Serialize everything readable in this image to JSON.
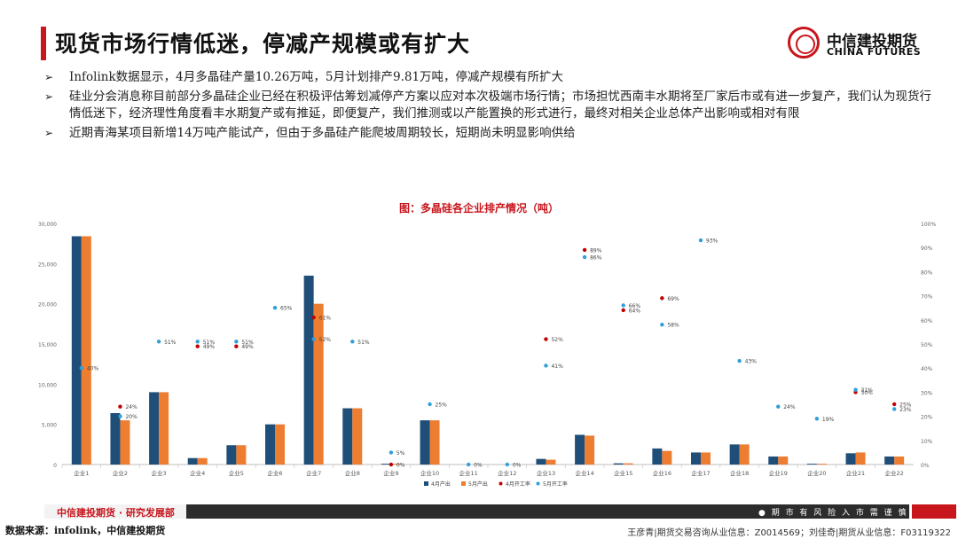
{
  "header": {
    "title": "现货市场行情低迷，停减产规模或有扩大",
    "logo_cn": "中信建投期货",
    "logo_en": "CHINA FUTURES"
  },
  "bullets": [
    "Infolink数据显示，4月多晶硅产量10.26万吨，5月计划排产9.81万吨，停减产规模有所扩大",
    "硅业分会消息称目前部分多晶硅企业已经在积极评估筹划减停产方案以应对本次极端市场行情；市场担忧西南丰水期将至厂家后市或有进一步复产，我们认为现货行情低迷下，经济理性角度看丰水期复产或有推延，即便复产，我们推测或以产能置换的形式进行，最终对相关企业总体产出影响或相对有限",
    "近期青海某项目新增14万吨产能试产，但由于多晶硅产能爬坡周期较长，短期尚未明显影响供给"
  ],
  "chart_data": {
    "type": "bar",
    "title": "图：多晶硅各企业排产情况（吨）",
    "categories": [
      "企业1",
      "企业2",
      "企业3",
      "企业4",
      "企业5",
      "企业6",
      "企业7",
      "企业8",
      "企业9",
      "企业10",
      "企业11",
      "企业12",
      "企业13",
      "企业14",
      "企业15",
      "企业16",
      "企业17",
      "企业18",
      "企业19",
      "企业20",
      "企业21",
      "企业22"
    ],
    "series": [
      {
        "name": "4月产出",
        "type": "bar",
        "axis": "left",
        "color": "#1f4e79",
        "values": [
          28400,
          6400,
          9000,
          800,
          2400,
          5000,
          23500,
          7000,
          100,
          5500,
          0,
          0,
          700,
          3700,
          150,
          2000,
          1500,
          2500,
          1000,
          100,
          1400,
          1000
        ]
      },
      {
        "name": "5月产出",
        "type": "bar",
        "axis": "left",
        "color": "#ed7d31",
        "values": [
          28400,
          5500,
          9000,
          800,
          2400,
          5000,
          20000,
          7000,
          100,
          5500,
          0,
          0,
          600,
          3600,
          150,
          1700,
          1500,
          2500,
          1000,
          100,
          1500,
          1000
        ]
      },
      {
        "name": "4月开工率",
        "type": "scatter",
        "axis": "right",
        "color": "#c00000",
        "values": [
          null,
          24,
          null,
          49,
          49,
          null,
          61,
          null,
          0,
          null,
          null,
          null,
          52,
          89,
          64,
          69,
          null,
          null,
          null,
          null,
          30,
          25
        ]
      },
      {
        "name": "5月开工率",
        "type": "scatter",
        "axis": "right",
        "color": "#2e9fd9",
        "values": [
          40,
          20,
          51,
          51,
          51,
          65,
          52,
          51,
          5,
          25,
          0,
          0,
          41,
          86,
          66,
          58,
          93,
          43,
          24,
          19,
          31,
          23
        ]
      }
    ],
    "left_ticks": [
      "0",
      "5,000",
      "10,000",
      "15,000",
      "20,000",
      "25,000",
      "30,000"
    ],
    "right_ticks": [
      "0%",
      "10%",
      "20%",
      "30%",
      "40%",
      "50%",
      "60%",
      "70%",
      "80%",
      "90%",
      "100%"
    ],
    "ylim": [
      0,
      30000
    ],
    "y2lim": [
      0,
      100
    ],
    "legend_position": "bottom"
  },
  "footer": {
    "brand": "中信建投期货 · 研究发展部",
    "risk": "● 期 市 有 风 险    入 市 需 谨 慎",
    "source": "数据来源：infolink，中信建投期货",
    "authors": "王彦青|期货交易咨询从业信息：Z0014569；刘佳奇|期货从业信息：F03119322"
  }
}
